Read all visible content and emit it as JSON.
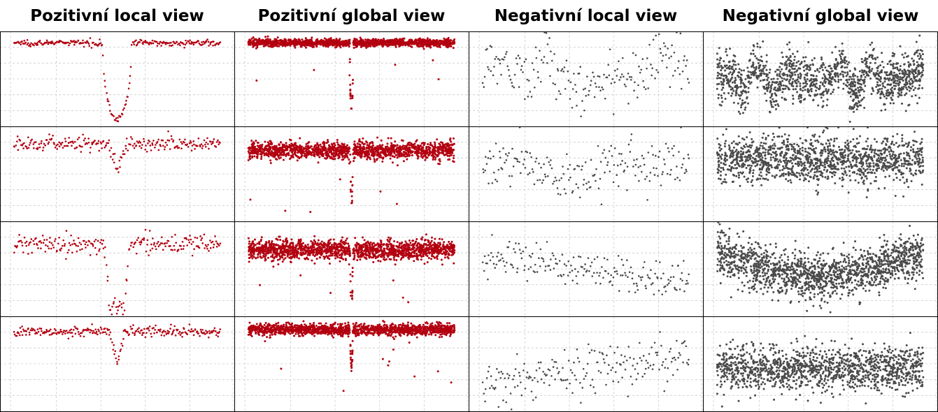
{
  "titles": [
    "Pozitivní local view",
    "Pozitivní global view",
    "Negativní local view",
    "Negativní global view"
  ],
  "colors": {
    "positive": "#b30010",
    "negative": "#4a4a4a",
    "grid": "#cccccc",
    "border": "#000000"
  },
  "chart_data": [
    {
      "type": "scatter",
      "panel": "pos-local-1",
      "baseline": 0.88,
      "noise": 0.015,
      "points": 260,
      "dip": {
        "center": 0.5,
        "width": 0.07,
        "depth": 0.8,
        "shape": "round"
      }
    },
    {
      "type": "scatter",
      "panel": "pos-global-1",
      "baseline": 0.88,
      "noise": 0.02,
      "points": 1500,
      "dip": {
        "center": 0.5,
        "width": 0.008,
        "depth": 0.7
      }
    },
    {
      "type": "scatter",
      "panel": "neg-local-1",
      "baseline": 0.55,
      "noise": 0.15,
      "points": 200,
      "trend": "wave"
    },
    {
      "type": "scatter",
      "panel": "neg-global-1",
      "baseline": 0.5,
      "noise": 0.12,
      "points": 1300,
      "trend": "oscillating"
    },
    {
      "type": "scatter",
      "panel": "pos-local-2",
      "baseline": 0.82,
      "noise": 0.04,
      "points": 240,
      "dip": {
        "center": 0.5,
        "width": 0.04,
        "depth": 0.28,
        "shape": "v"
      }
    },
    {
      "type": "scatter",
      "panel": "pos-global-2",
      "baseline": 0.75,
      "noise": 0.045,
      "points": 1500,
      "dip": {
        "center": 0.5,
        "width": 0.006,
        "depth": 0.55
      }
    },
    {
      "type": "scatter",
      "panel": "neg-local-2",
      "baseline": 0.55,
      "noise": 0.12,
      "points": 200,
      "trend": "valley"
    },
    {
      "type": "scatter",
      "panel": "neg-global-2",
      "baseline": 0.65,
      "noise": 0.12,
      "points": 1300,
      "trend": "flat"
    },
    {
      "type": "scatter",
      "panel": "pos-local-3",
      "baseline": 0.76,
      "noise": 0.05,
      "points": 240,
      "dip": {
        "center": 0.5,
        "width": 0.06,
        "depth": 0.65,
        "shape": "u"
      }
    },
    {
      "type": "scatter",
      "panel": "pos-global-3",
      "baseline": 0.7,
      "noise": 0.05,
      "points": 1600,
      "dip": {
        "center": 0.5,
        "width": 0.006,
        "depth": 0.6
      }
    },
    {
      "type": "scatter",
      "panel": "neg-local-3",
      "baseline": 0.5,
      "noise": 0.1,
      "points": 200,
      "trend": "decline"
    },
    {
      "type": "scatter",
      "panel": "neg-global-3",
      "baseline": 0.55,
      "noise": 0.12,
      "points": 1500,
      "trend": "sag"
    },
    {
      "type": "scatter",
      "panel": "pos-local-4",
      "baseline": 0.84,
      "noise": 0.025,
      "points": 260,
      "dip": {
        "center": 0.5,
        "width": 0.035,
        "depth": 0.35,
        "shape": "v"
      }
    },
    {
      "type": "scatter",
      "panel": "pos-global-4",
      "baseline": 0.86,
      "noise": 0.03,
      "points": 1500,
      "dip": {
        "center": 0.5,
        "width": 0.006,
        "depth": 0.4
      }
    },
    {
      "type": "scatter",
      "panel": "neg-local-4",
      "baseline": 0.4,
      "noise": 0.12,
      "points": 200,
      "trend": "rise"
    },
    {
      "type": "scatter",
      "panel": "neg-global-4",
      "baseline": 0.45,
      "noise": 0.12,
      "points": 1300,
      "trend": "flat"
    }
  ]
}
